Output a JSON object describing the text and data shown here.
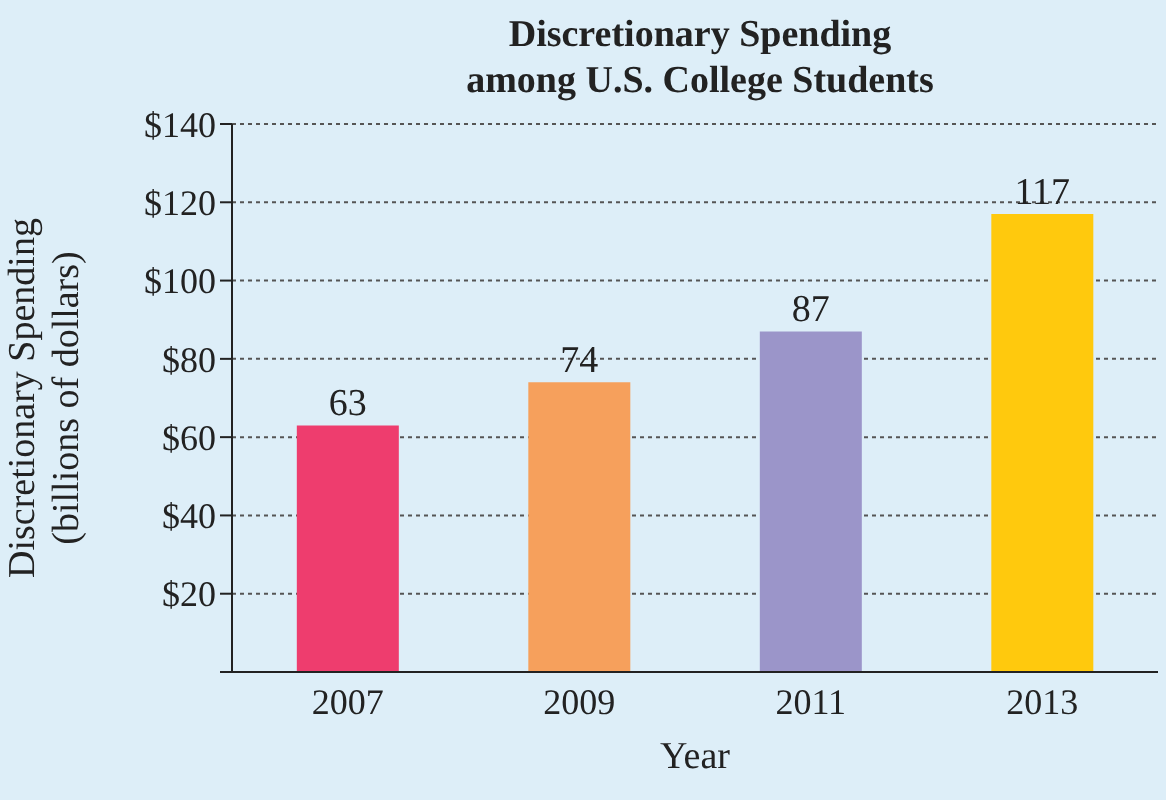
{
  "chart_data": {
    "type": "bar",
    "title": "Discretionary Spending\namong U.S. College Students",
    "xlabel": "Year",
    "ylabel": "Discretionary Spending\n(billions of dollars)",
    "categories": [
      "2007",
      "2009",
      "2011",
      "2013"
    ],
    "values": [
      63,
      74,
      87,
      117
    ],
    "colors": [
      "#ee3d6e",
      "#f6a05c",
      "#9b95c9",
      "#ffc90d"
    ],
    "ylim": [
      0,
      140
    ],
    "yticks": [
      {
        "value": 0,
        "label": null
      },
      {
        "value": 20,
        "label": "$20"
      },
      {
        "value": 40,
        "label": "$40"
      },
      {
        "value": 60,
        "label": "$60"
      },
      {
        "value": 80,
        "label": "$80"
      },
      {
        "value": 100,
        "label": "$100"
      },
      {
        "value": 120,
        "label": "$120"
      },
      {
        "value": 140,
        "label": "$140"
      }
    ],
    "grid": "y",
    "data_labels": true
  }
}
